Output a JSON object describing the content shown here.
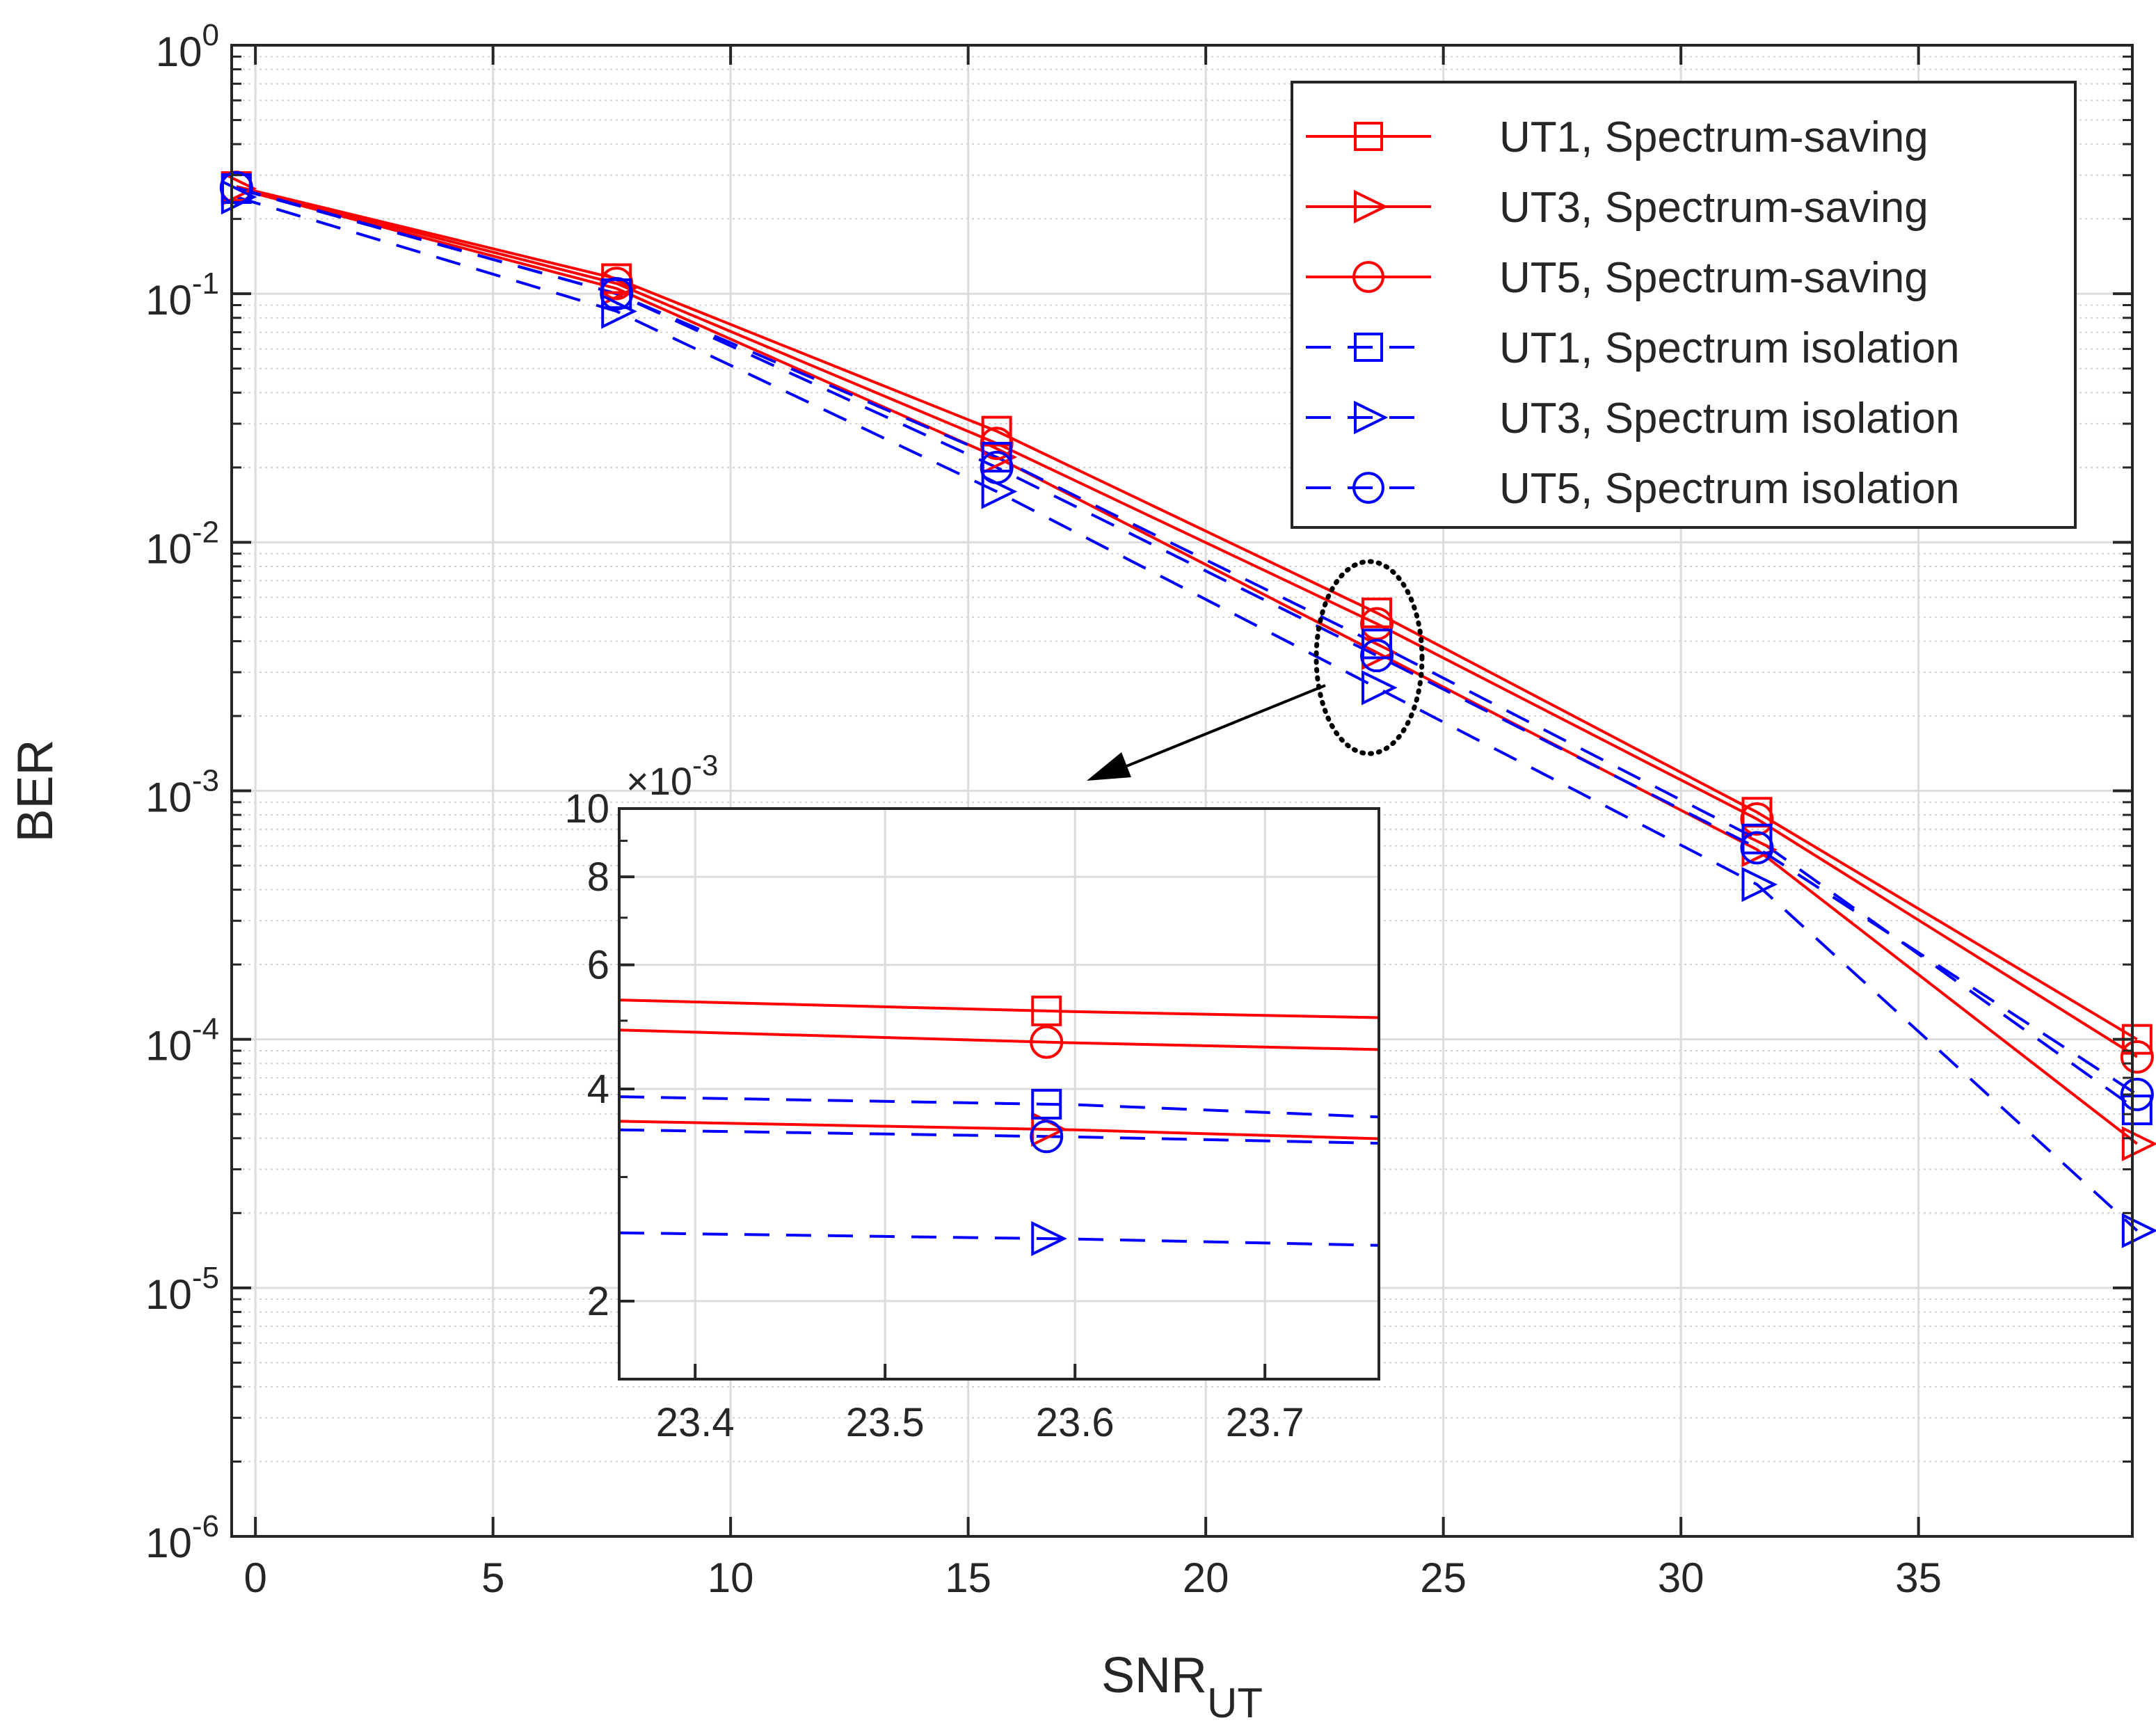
{
  "chart_data": [
    {
      "id": "main",
      "type": "line",
      "xlabel": "SNR",
      "xlabel_sub": "UT",
      "ylabel": "BER",
      "yscale": "log",
      "xlim": [
        -0.5,
        39.5
      ],
      "ylim": [
        1e-06,
        1
      ],
      "xticks": [
        0,
        5,
        10,
        15,
        20,
        25,
        30,
        35
      ],
      "xtick_labels": [
        "0",
        "5",
        "10",
        "15",
        "20",
        "25",
        "30",
        "35"
      ],
      "yticks": [
        1e-06,
        1e-05,
        0.0001,
        0.001,
        0.01,
        0.1,
        1
      ],
      "ytick_labels": [
        {
          "base": "10",
          "exp": "-6"
        },
        {
          "base": "10",
          "exp": "-5"
        },
        {
          "base": "10",
          "exp": "-4"
        },
        {
          "base": "10",
          "exp": "-3"
        },
        {
          "base": "10",
          "exp": "-2"
        },
        {
          "base": "10",
          "exp": "-1"
        },
        {
          "base": "10",
          "exp": "0"
        }
      ],
      "grid": true,
      "legend_position": "top-right",
      "x": [
        -0.4,
        7.6,
        15.6,
        23.6,
        31.6,
        39.6
      ],
      "series": [
        {
          "name": "UT1, Spectrum-saving",
          "color": "#ff0000",
          "dash": "solid",
          "marker": "square",
          "values": [
            0.27,
            0.115,
            0.028,
            0.0052,
            0.00082,
            0.0001
          ]
        },
        {
          "name": "UT3, Spectrum-saving",
          "color": "#ff0000",
          "dash": "solid",
          "marker": "triangle-right",
          "values": [
            0.265,
            0.105,
            0.022,
            0.0036,
            0.00058,
            3.8e-05
          ]
        },
        {
          "name": "UT5, Spectrum-saving",
          "color": "#ff0000",
          "dash": "solid",
          "marker": "circle",
          "values": [
            0.268,
            0.11,
            0.025,
            0.0047,
            0.00077,
            8.5e-05
          ]
        },
        {
          "name": "UT1, Spectrum isolation",
          "color": "#0000ff",
          "dash": "dashed",
          "marker": "square",
          "values": [
            0.265,
            0.1,
            0.022,
            0.0039,
            0.00064,
            5.2e-05
          ]
        },
        {
          "name": "UT3, Spectrum isolation",
          "color": "#0000ff",
          "dash": "dashed",
          "marker": "triangle-right",
          "values": [
            0.245,
            0.085,
            0.016,
            0.0026,
            0.00042,
            1.7e-05
          ]
        },
        {
          "name": "UT5, Spectrum isolation",
          "color": "#0000ff",
          "dash": "dashed",
          "marker": "circle",
          "values": [
            0.267,
            0.1,
            0.02,
            0.0035,
            0.00059,
            6e-05
          ]
        }
      ]
    },
    {
      "id": "inset",
      "type": "line",
      "title": "",
      "yscale": "log",
      "xlim": [
        23.36,
        23.76
      ],
      "ylim": [
        0.00155,
        0.01
      ],
      "xticks": [
        23.4,
        23.5,
        23.6,
        23.7
      ],
      "xtick_labels": [
        "23.4",
        "23.5",
        "23.6",
        "23.7"
      ],
      "yticks": [
        0.002,
        0.004,
        0.006,
        0.008,
        0.01
      ],
      "ytick_labels": [
        "2",
        "4",
        "6",
        "8",
        "10"
      ],
      "y_multiplier": {
        "prefix": "×10",
        "exp": "-3"
      },
      "grid": true,
      "x": [
        23.36,
        23.6,
        23.76
      ],
      "marker_x": 23.585,
      "series": [
        {
          "name": "UT1, Spectrum-saving",
          "color": "#ff0000",
          "dash": "solid",
          "marker": "square",
          "values": [
            0.00535,
            0.00515,
            0.00505
          ]
        },
        {
          "name": "UT3, Spectrum-saving",
          "color": "#ff0000",
          "dash": "solid",
          "marker": "triangle-right",
          "values": [
            0.0036,
            0.0035,
            0.0034
          ]
        },
        {
          "name": "UT5, Spectrum-saving",
          "color": "#ff0000",
          "dash": "solid",
          "marker": "circle",
          "values": [
            0.00485,
            0.00465,
            0.00455
          ]
        },
        {
          "name": "UT1, Spectrum isolation",
          "color": "#0000ff",
          "dash": "dashed",
          "marker": "square",
          "values": [
            0.0039,
            0.0038,
            0.00365
          ]
        },
        {
          "name": "UT3, Spectrum isolation",
          "color": "#0000ff",
          "dash": "dashed",
          "marker": "triangle-right",
          "values": [
            0.0025,
            0.00245,
            0.0024
          ]
        },
        {
          "name": "UT5, Spectrum isolation",
          "color": "#0000ff",
          "dash": "dashed",
          "marker": "circle",
          "values": [
            0.0035,
            0.00342,
            0.00335
          ]
        }
      ]
    }
  ]
}
